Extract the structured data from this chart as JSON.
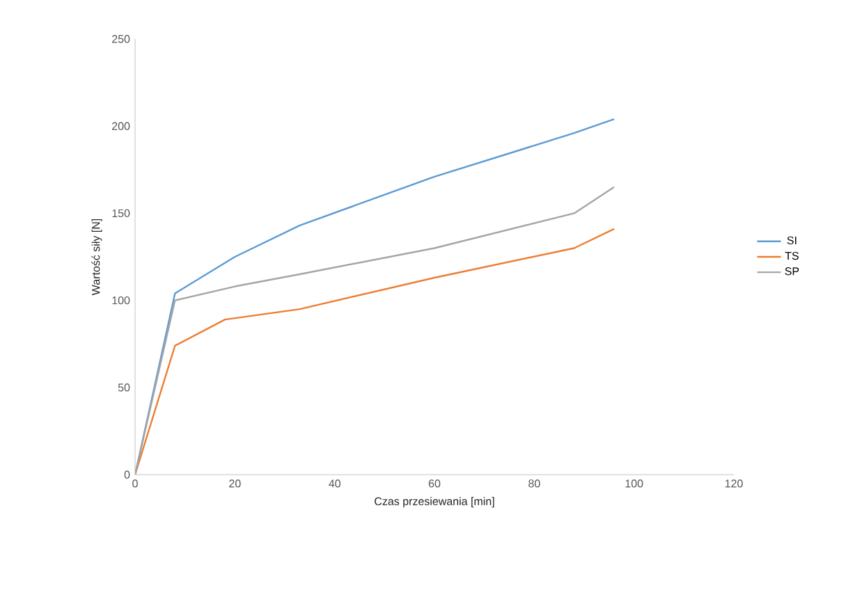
{
  "chart_data": {
    "type": "line",
    "xlabel": "Czas przesiewania [min]",
    "ylabel": "Wartość siły [N]",
    "xlim": [
      0,
      120
    ],
    "xticks": [
      0,
      20,
      40,
      60,
      80,
      100,
      120
    ],
    "ylim": [
      0,
      250
    ],
    "yticks": [
      0,
      50,
      100,
      150,
      200,
      250
    ],
    "grid": false,
    "legend": "right",
    "marker": "none",
    "series": [
      {
        "name": "SI",
        "color": "#5b9bd5",
        "x": [
          0,
          8,
          20,
          33,
          60,
          88,
          96
        ],
        "values": [
          0,
          104,
          125,
          143,
          171,
          196,
          204
        ]
      },
      {
        "name": "TS",
        "color": "#ed7d31",
        "x": [
          0,
          8,
          18,
          33,
          60,
          88,
          96
        ],
        "values": [
          0,
          74,
          89,
          95,
          113,
          130,
          141
        ]
      },
      {
        "name": "SP",
        "color": "#a5a5a5",
        "x": [
          0,
          8,
          20,
          33,
          60,
          88,
          96
        ],
        "values": [
          0,
          100,
          108,
          115,
          130,
          150,
          165
        ]
      }
    ]
  }
}
